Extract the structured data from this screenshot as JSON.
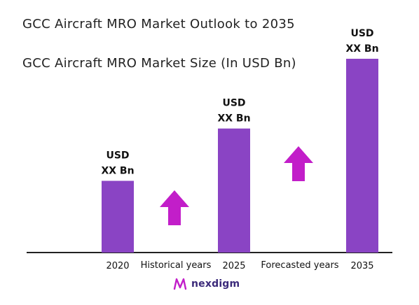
{
  "brand": {
    "name": "nexdigm",
    "icon": "nexdigm-logo-icon"
  },
  "colors": {
    "bar": "#8a44c4",
    "arrow": "#c21ec9",
    "axis": "#222222"
  },
  "chart_data": {
    "type": "bar",
    "title": "GCC Aircraft MRO Market Outlook to 2035",
    "subtitle": "GCC Aircraft MRO Market Size (In USD Bn)",
    "categories": [
      "2020",
      "2025",
      "2035"
    ],
    "values": [
      37,
      64,
      100
    ],
    "value_units": "relative (undisclosed)",
    "data_labels": [
      {
        "line1": "USD",
        "line2": "XX Bn"
      },
      {
        "line1": "USD",
        "line2": "XX Bn"
      },
      {
        "line1": "USD",
        "line2": "XX Bn"
      }
    ],
    "period_labels": [
      "Historical years",
      "Forecasted years"
    ],
    "ylim": [
      0,
      100
    ],
    "grid": false,
    "legend": "none"
  }
}
